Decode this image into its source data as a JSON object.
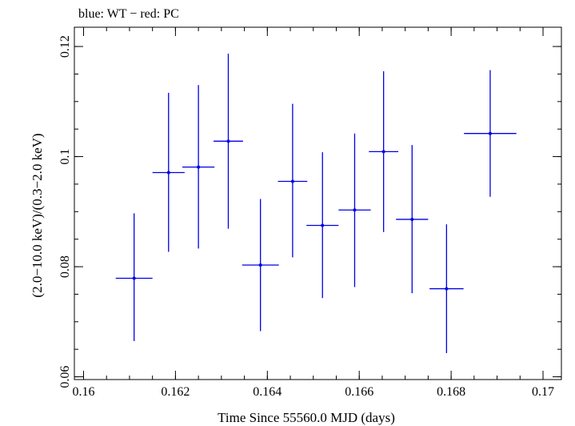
{
  "chart_data": {
    "type": "scatter",
    "title": "blue: WT − red: PC",
    "xlabel": "Time Since 55560.0 MJD (days)",
    "ylabel": "(2.0−10.0 keV)/(0.3−2.0 keV)",
    "xlim": [
      0.1598,
      0.1704
    ],
    "ylim": [
      0.0595,
      0.1235
    ],
    "x_ticks": [
      {
        "value": 0.16,
        "label": "0.16"
      },
      {
        "value": 0.162,
        "label": "0.162"
      },
      {
        "value": 0.164,
        "label": "0.164"
      },
      {
        "value": 0.166,
        "label": "0.166"
      },
      {
        "value": 0.168,
        "label": "0.168"
      },
      {
        "value": 0.17,
        "label": "0.17"
      }
    ],
    "y_ticks": [
      {
        "value": 0.06,
        "label": "0.06"
      },
      {
        "value": 0.08,
        "label": "0.08"
      },
      {
        "value": 0.1,
        "label": "0.1"
      },
      {
        "value": 0.12,
        "label": "0.12"
      }
    ],
    "x_minor_step": 0.0005,
    "y_minor_step": 0.005,
    "grid": false,
    "series": [
      {
        "color": "#0000e6",
        "points": [
          {
            "x": 0.1611,
            "xerr": 0.0004,
            "y": 0.0779,
            "ylo": 0.0665,
            "yhi": 0.0897
          },
          {
            "x": 0.16185,
            "xerr": 0.00035,
            "y": 0.0971,
            "ylo": 0.0827,
            "yhi": 0.1116
          },
          {
            "x": 0.1625,
            "xerr": 0.00035,
            "y": 0.0981,
            "ylo": 0.0833,
            "yhi": 0.113
          },
          {
            "x": 0.16315,
            "xerr": 0.00032,
            "y": 0.1028,
            "ylo": 0.0869,
            "yhi": 0.1187
          },
          {
            "x": 0.16385,
            "xerr": 0.0004,
            "y": 0.0803,
            "ylo": 0.0683,
            "yhi": 0.0923
          },
          {
            "x": 0.16455,
            "xerr": 0.00032,
            "y": 0.0955,
            "ylo": 0.0817,
            "yhi": 0.1096
          },
          {
            "x": 0.1652,
            "xerr": 0.00035,
            "y": 0.0875,
            "ylo": 0.0743,
            "yhi": 0.1008
          },
          {
            "x": 0.1659,
            "xerr": 0.00035,
            "y": 0.0903,
            "ylo": 0.0763,
            "yhi": 0.1042
          },
          {
            "x": 0.16653,
            "xerr": 0.00032,
            "y": 0.1009,
            "ylo": 0.0863,
            "yhi": 0.1155
          },
          {
            "x": 0.16715,
            "xerr": 0.00035,
            "y": 0.0886,
            "ylo": 0.0752,
            "yhi": 0.1021
          },
          {
            "x": 0.1679,
            "xerr": 0.00037,
            "y": 0.076,
            "ylo": 0.0643,
            "yhi": 0.0877
          },
          {
            "x": 0.16885,
            "xerr": 0.00057,
            "y": 0.1042,
            "ylo": 0.0927,
            "yhi": 0.1157
          }
        ]
      }
    ]
  }
}
